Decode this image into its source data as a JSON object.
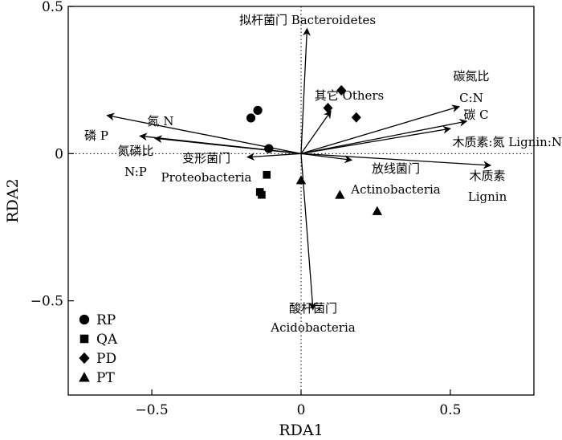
{
  "chart_data": {
    "type": "scatter",
    "subtype": "rda-biplot",
    "xlabel": "RDA1",
    "ylabel": "RDA2",
    "xlim": [
      -0.78,
      0.78
    ],
    "ylim": [
      -0.82,
      0.5
    ],
    "xticks": [
      {
        "value": -0.5,
        "label": "−0.5"
      },
      {
        "value": 0,
        "label": "0"
      },
      {
        "value": 0.5,
        "label": "0.5"
      }
    ],
    "yticks": [
      {
        "value": -0.5,
        "label": "−0.5"
      },
      {
        "value": 0,
        "label": "0"
      },
      {
        "value": 0.5,
        "label": "0.5"
      }
    ],
    "zero_lines": true,
    "legend_position": "bottom-left",
    "series": [
      {
        "name": "RP",
        "marker": "circle",
        "points": [
          [
            -0.145,
            0.147
          ],
          [
            -0.168,
            0.121
          ],
          [
            -0.108,
            0.017
          ]
        ]
      },
      {
        "name": "QA",
        "marker": "square",
        "points": [
          [
            -0.115,
            -0.072
          ],
          [
            -0.138,
            -0.13
          ],
          [
            -0.132,
            -0.14
          ]
        ]
      },
      {
        "name": "PD",
        "marker": "diamond",
        "points": [
          [
            0.135,
            0.215
          ],
          [
            0.09,
            0.155
          ],
          [
            0.185,
            0.123
          ]
        ]
      },
      {
        "name": "PT",
        "marker": "triangle",
        "points": [
          [
            0.0,
            -0.09
          ],
          [
            0.13,
            -0.14
          ],
          [
            0.255,
            -0.195
          ]
        ]
      }
    ],
    "vectors": [
      {
        "name": "Bacteroidetes",
        "x": 0.02,
        "y": 0.425,
        "label_lines": [
          "拟杆菌门 Bacteroidetes"
        ]
      },
      {
        "name": "Others",
        "x": 0.1,
        "y": 0.145,
        "label_lines": [
          "其它 Others"
        ]
      },
      {
        "name": "C:N",
        "x": 0.53,
        "y": 0.16,
        "label_lines": [
          "碳氮比",
          "C:N"
        ]
      },
      {
        "name": "C",
        "x": 0.555,
        "y": 0.11,
        "label_lines": [
          "碳 C"
        ]
      },
      {
        "name": "Lignin:N",
        "x": 0.5,
        "y": 0.085,
        "label_lines": [
          "木质素:氮 Lignin:N"
        ]
      },
      {
        "name": "Lignin",
        "x": 0.635,
        "y": -0.04,
        "label_lines": [
          "木质素",
          "Lignin"
        ]
      },
      {
        "name": "Actinobacteria",
        "x": 0.17,
        "y": -0.022,
        "label_lines": [
          "放线菌门",
          "Actinobacteria"
        ]
      },
      {
        "name": "Acidobacteria",
        "x": 0.04,
        "y": -0.53,
        "label_lines": [
          "酸杆菌门",
          "Acidobacteria"
        ]
      },
      {
        "name": "Proteobacteria",
        "x": -0.18,
        "y": -0.012,
        "label_lines": [
          "变形菌门",
          "Proteobacteria"
        ]
      },
      {
        "name": "N:P",
        "x": -0.49,
        "y": 0.052,
        "label_lines": [
          "氮磷比",
          "N:P"
        ]
      },
      {
        "name": "N",
        "x": -0.54,
        "y": 0.06,
        "label_lines": [
          "氮 N"
        ]
      },
      {
        "name": "P",
        "x": -0.65,
        "y": 0.13,
        "label_lines": [
          "磷 P"
        ]
      }
    ]
  }
}
